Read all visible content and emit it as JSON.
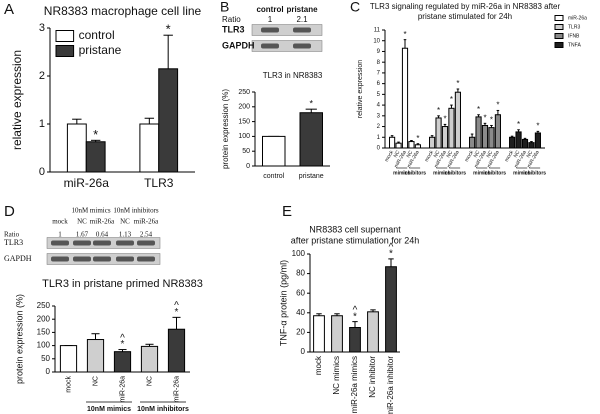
{
  "chart_data": [
    {
      "type": "bar",
      "panel": "A",
      "title": [
        "NR8383 macrophage cell line"
      ],
      "ylabel": "relative expression",
      "group_by": "category",
      "categories": [
        "miR-26a",
        "TLR3"
      ],
      "series": [
        {
          "name": "control",
          "color": "#ffffff",
          "values": [
            1.0,
            1.0
          ],
          "errors": [
            0.1,
            0.12
          ],
          "annotations": [
            null,
            null
          ]
        },
        {
          "name": "pristane",
          "color": "#3a3a3a",
          "values": [
            0.63,
            2.15
          ],
          "errors": [
            0.03,
            0.7
          ],
          "annotations": [
            [
              "*"
            ],
            [
              "*"
            ]
          ]
        }
      ],
      "ylim": [
        0,
        3
      ],
      "yticks": [
        0,
        1,
        2,
        3
      ],
      "legend": "upper-left"
    },
    {
      "type": "bar",
      "panel": "B",
      "title": [
        "TLR3 in NR8383"
      ],
      "ylabel": "protein expression (%)",
      "categories": [
        "control",
        "pristane"
      ],
      "values": [
        100,
        180
      ],
      "errors": [
        0,
        12
      ],
      "colors": [
        "#ffffff",
        "#3a3a3a"
      ],
      "annotations": [
        null,
        [
          "*"
        ]
      ],
      "ylim": [
        0,
        250
      ],
      "yticks": [
        0,
        50,
        100,
        150,
        200,
        250
      ]
    },
    {
      "type": "bar",
      "panel": "C",
      "title": [
        "TLR3 signaling regulated by miR-26a in NR8383 after",
        "pristane stimulated for 24h"
      ],
      "ylabel": "relative expression",
      "group_by": "series",
      "categories": [
        "mock",
        "NC",
        "miR-26a",
        "NC",
        "miR-26a"
      ],
      "group_labels": [
        "mimics",
        "inhibitors"
      ],
      "series": [
        {
          "name": "miR-26a",
          "color": "#ffffff",
          "values": [
            1.0,
            0.45,
            9.3,
            0.6,
            0.3
          ],
          "errors": [
            0.15,
            0.1,
            0.8,
            0.1,
            0.1
          ],
          "annotations": [
            null,
            null,
            [
              "*"
            ],
            null,
            [
              "*"
            ]
          ]
        },
        {
          "name": "TLR3",
          "color": "#cfcfcf",
          "values": [
            1.0,
            2.8,
            2.0,
            3.7,
            5.2
          ],
          "errors": [
            0.15,
            0.2,
            0.2,
            0.3,
            0.3
          ],
          "annotations": [
            null,
            [
              "*"
            ],
            [
              "*"
            ],
            [
              "*"
            ],
            [
              "*"
            ]
          ]
        },
        {
          "name": "IFNB",
          "color": "#8a8a8a",
          "values": [
            1.0,
            2.9,
            2.1,
            1.9,
            3.1
          ],
          "errors": [
            0.3,
            0.2,
            0.2,
            0.2,
            0.4
          ],
          "annotations": [
            null,
            [
              "*"
            ],
            [
              "*"
            ],
            [
              "*"
            ],
            [
              "*"
            ]
          ]
        },
        {
          "name": "TNFA",
          "color": "#1e1e1e",
          "values": [
            1.0,
            1.5,
            0.8,
            0.5,
            1.4
          ],
          "errors": [
            0.1,
            0.2,
            0.1,
            0.1,
            0.15
          ],
          "annotations": [
            null,
            [
              "*"
            ],
            null,
            null,
            [
              "*"
            ]
          ]
        }
      ],
      "ylim": [
        0,
        11
      ],
      "yticks": [
        0,
        1,
        2,
        3,
        4,
        5,
        6,
        7,
        8,
        9,
        10,
        11
      ],
      "legend": "right"
    },
    {
      "type": "bar",
      "panel": "D",
      "title": [
        "TLR3 in pristane primed NR8383"
      ],
      "ylabel": "protein expression (%)",
      "categories": [
        "mock",
        "NC",
        "miR-26a",
        "NC",
        "miR-26a"
      ],
      "group_labels": [
        "10nM mimics",
        "10nM inhibitors"
      ],
      "values": [
        100,
        123,
        77,
        97,
        162
      ],
      "errors": [
        0,
        22,
        8,
        8,
        45
      ],
      "colors": [
        "#ffffff",
        "#cfcfcf",
        "#3a3a3a",
        "#cfcfcf",
        "#3a3a3a"
      ],
      "annotations": [
        null,
        null,
        [
          "^",
          "*"
        ],
        null,
        [
          "^",
          "*"
        ]
      ],
      "ylim": [
        0,
        250
      ],
      "yticks": [
        0,
        50,
        100,
        150,
        200,
        250
      ]
    },
    {
      "type": "bar",
      "panel": "E",
      "title": [
        "NR8383 cell supernant",
        "after pristane stimulation for 24h"
      ],
      "ylabel": "TNF-α protein (pg/ml)",
      "categories": [
        "mock",
        "NC mimics",
        "miR-26a mimics",
        "NC inhibitor",
        "miR-26a inhibitor"
      ],
      "values": [
        37,
        37,
        25,
        41,
        87
      ],
      "errors": [
        2,
        2,
        6,
        2,
        8
      ],
      "colors": [
        "#ffffff",
        "#cfcfcf",
        "#3a3a3a",
        "#cfcfcf",
        "#3a3a3a"
      ],
      "annotations": [
        null,
        null,
        [
          "^",
          "*"
        ],
        null,
        [
          "^",
          "*"
        ]
      ],
      "ylim": [
        0,
        100
      ],
      "yticks": [
        0,
        20,
        40,
        60,
        80,
        100
      ]
    }
  ],
  "blots": [
    {
      "columns": [
        "control",
        "pristane"
      ],
      "ratio_label": "Ratio",
      "ratios": [
        1,
        2.1
      ],
      "rows": [
        "TLR3",
        "GAPDH"
      ]
    },
    {
      "group_headers": [
        "10nM mimics",
        "10nM inhibitors"
      ],
      "columns": [
        "mock",
        "NC",
        "miR-26a",
        "NC",
        "miR-26a"
      ],
      "ratio_label": "Ratio",
      "ratios": [
        1,
        1.67,
        0.64,
        1.13,
        2.54
      ],
      "rows": [
        "TLR3",
        "GAPDH"
      ]
    }
  ]
}
